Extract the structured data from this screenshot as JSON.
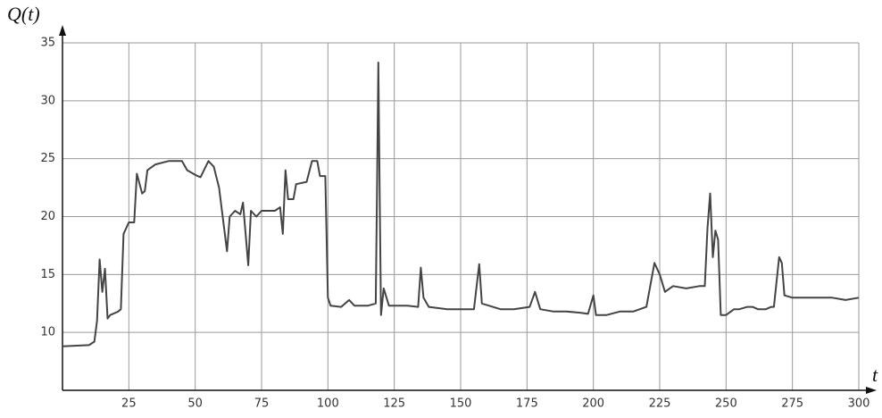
{
  "chart_data": {
    "type": "line",
    "x_label": "t",
    "y_label": "Q(t)",
    "xlim": [
      0,
      300
    ],
    "ylim": [
      5,
      35
    ],
    "xticks": [
      25,
      50,
      75,
      100,
      125,
      150,
      175,
      200,
      225,
      250,
      275,
      300
    ],
    "yticks": [
      10,
      15,
      20,
      25,
      30,
      35
    ],
    "grid": true,
    "series": [
      {
        "color": "#444444",
        "x": [
          0,
          10,
          12,
          13,
          14,
          15,
          16,
          17,
          18,
          21,
          22,
          23,
          25,
          27,
          28,
          30,
          31,
          32,
          35,
          40,
          45,
          47,
          50,
          52,
          55,
          57,
          59,
          62,
          63,
          65,
          67,
          68,
          70,
          71,
          73,
          75,
          78,
          80,
          82,
          83,
          84,
          85,
          87,
          88,
          92,
          94,
          96,
          97,
          99,
          100,
          101,
          105,
          108,
          110,
          115,
          118,
          118.5,
          119,
          119.5,
          120,
          121,
          123,
          130,
          134,
          135,
          136,
          138,
          145,
          150,
          155,
          157,
          158,
          165,
          170,
          176,
          178,
          180,
          185,
          190,
          195,
          198,
          200,
          201,
          205,
          210,
          215,
          220,
          223,
          225,
          227,
          230,
          235,
          240,
          242,
          243,
          244,
          245,
          246,
          247,
          248,
          250,
          253,
          255,
          258,
          260,
          262,
          265,
          267,
          268,
          270,
          271,
          272,
          275,
          280,
          290,
          295,
          300
        ],
        "values": [
          8.8,
          8.9,
          9.2,
          11,
          16.3,
          13.5,
          15.5,
          11.2,
          11.5,
          11.8,
          12,
          18.5,
          19.5,
          19.5,
          23.7,
          22,
          22.2,
          24,
          24.5,
          24.8,
          24.8,
          24,
          23.6,
          23.4,
          24.8,
          24.3,
          22.5,
          17,
          20,
          20.5,
          20.2,
          21.2,
          15.8,
          20.5,
          20,
          20.5,
          20.5,
          20.5,
          20.8,
          18.5,
          24,
          21.5,
          21.5,
          22.8,
          23,
          24.8,
          24.8,
          23.5,
          23.5,
          13,
          12.3,
          12.2,
          12.8,
          12.3,
          12.3,
          12.5,
          22,
          33.3,
          22,
          11.5,
          13.8,
          12.3,
          12.3,
          12.2,
          15.6,
          13,
          12.2,
          12,
          12,
          12,
          15.9,
          12.5,
          12,
          12,
          12.2,
          13.5,
          12,
          11.8,
          11.8,
          11.7,
          11.6,
          13.2,
          11.5,
          11.5,
          11.8,
          11.8,
          12.2,
          16,
          15,
          13.5,
          14,
          13.8,
          14,
          14,
          19,
          22,
          16.5,
          18.8,
          18,
          11.5,
          11.5,
          12,
          12,
          12.2,
          12.2,
          12,
          12,
          12.2,
          12.2,
          16.5,
          16,
          13.2,
          13,
          13,
          13,
          12.8,
          13
        ]
      }
    ]
  }
}
